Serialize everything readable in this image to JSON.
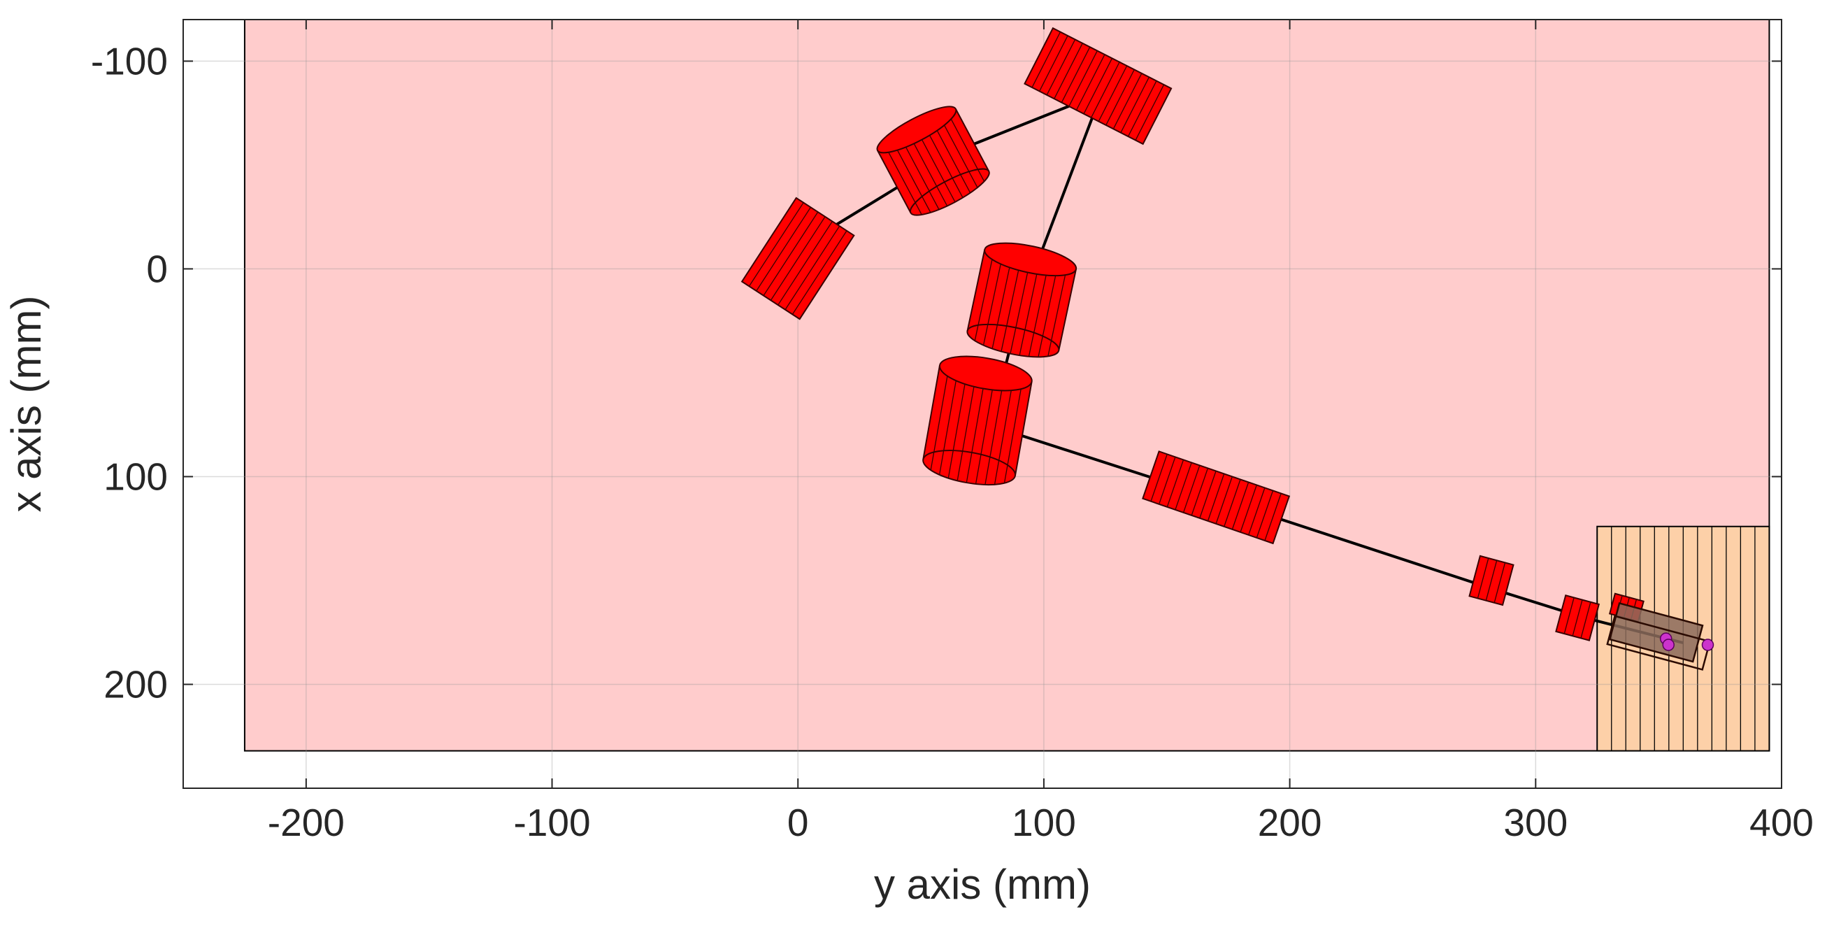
{
  "chart_data": {
    "type": "scatter",
    "xlabel": "y axis (mm)",
    "ylabel": "x axis (mm)",
    "xlim": [
      -250,
      400
    ],
    "ylim": [
      -120,
      250
    ],
    "y_axis_reversed": true,
    "grid": true,
    "x_ticks": [
      -200,
      -100,
      0,
      100,
      200,
      300,
      400
    ],
    "y_ticks": [
      -100,
      0,
      100,
      200
    ],
    "colors": {
      "workspace": "#ffcccc",
      "table": "#fdd0a8",
      "links": "#ff0000",
      "joints": "#ff0000",
      "gripper": "#8b6b5c",
      "targets": "#cc33cc"
    },
    "regions": [
      {
        "name": "workspace",
        "x": [
          -225,
          395
        ],
        "y": [
          -120,
          232
        ]
      },
      {
        "name": "table",
        "x": [
          325,
          395
        ],
        "y": [
          124,
          232
        ],
        "hatched": true
      }
    ],
    "links": [
      {
        "from": [
          0,
          -10
        ],
        "to": [
          65,
          -57
        ]
      },
      {
        "from": [
          65,
          -57
        ],
        "to": [
          118,
          -82
        ]
      },
      {
        "from": [
          122,
          -80
        ],
        "to": [
          98,
          -5
        ]
      },
      {
        "from": [
          88,
          30
        ],
        "to": [
          82,
          58
        ]
      },
      {
        "from": [
          85,
          78
        ],
        "to": [
          195,
          120
        ]
      },
      {
        "from": [
          195,
          120
        ],
        "to": [
          285,
          155
        ]
      },
      {
        "from": [
          285,
          155
        ],
        "to": [
          320,
          168
        ]
      },
      {
        "from": [
          320,
          168
        ],
        "to": [
          360,
          180
        ]
      }
    ],
    "joints": [
      {
        "name": "base",
        "x": 0,
        "y": -5,
        "kind": "block",
        "w": 28,
        "h": 48,
        "angle": 33
      },
      {
        "name": "joint-1",
        "x": 55,
        "y": -52,
        "kind": "cylinder",
        "w": 36,
        "h": 34,
        "angle": -28
      },
      {
        "name": "joint-2",
        "x": 122,
        "y": -88,
        "kind": "block",
        "w": 54,
        "h": 30,
        "angle": 27
      },
      {
        "name": "joint-3",
        "x": 91,
        "y": 15,
        "kind": "cylinder",
        "w": 38,
        "h": 40,
        "angle": 12
      },
      {
        "name": "joint-4",
        "x": 73,
        "y": 73,
        "kind": "cylinder",
        "w": 38,
        "h": 46,
        "angle": 10
      },
      {
        "name": "joint-5",
        "x": 170,
        "y": 110,
        "kind": "block",
        "w": 56,
        "h": 24,
        "angle": 19
      },
      {
        "name": "joint-6",
        "x": 282,
        "y": 150,
        "kind": "block",
        "w": 14,
        "h": 20,
        "angle": 15
      },
      {
        "name": "joint-7",
        "x": 317,
        "y": 168,
        "kind": "block",
        "w": 14,
        "h": 18,
        "angle": 15
      },
      {
        "name": "joint-8",
        "x": 337,
        "y": 163,
        "kind": "block",
        "w": 12,
        "h": 10,
        "angle": 15
      }
    ],
    "gripper": [
      {
        "x": 349,
        "y": 175,
        "w": 35,
        "h": 18,
        "angle": 15
      },
      {
        "x": 350,
        "y": 180,
        "w": 40,
        "h": 14,
        "angle": 15
      }
    ],
    "points": [
      {
        "x": 370,
        "y": 181
      },
      {
        "x": 353,
        "y": 178
      },
      {
        "x": 354,
        "y": 181
      }
    ]
  }
}
